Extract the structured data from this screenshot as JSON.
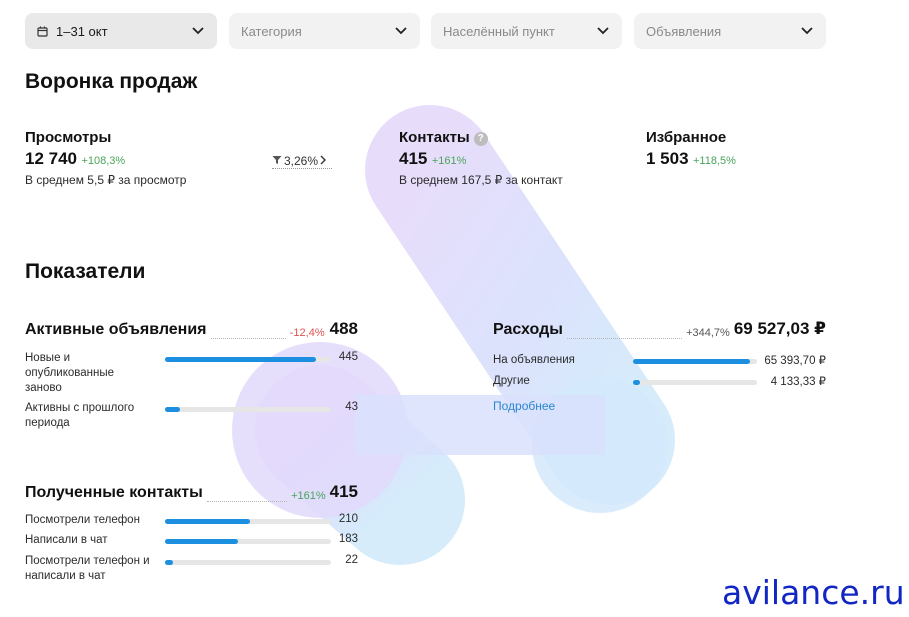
{
  "filters": {
    "period": "1–31 окт",
    "category": "Категория",
    "location": "Населённый пункт",
    "ads": "Объявления"
  },
  "funnel": {
    "title": "Воронка продаж",
    "views": {
      "title": "Просмотры",
      "value": "12 740",
      "delta": "+108,3%",
      "sub": "В среднем 5,5 ₽ за просмотр"
    },
    "conversion": "3,26%",
    "contacts": {
      "title": "Контакты",
      "value": "415",
      "delta": "+161%",
      "sub": "В среднем 167,5 ₽ за контакт"
    },
    "favorites": {
      "title": "Избранное",
      "value": "1 503",
      "delta": "+118,5%"
    }
  },
  "indicators": {
    "title": "Показатели",
    "active_ads": {
      "title": "Активные объявления",
      "delta": "-12,4%",
      "value": "488",
      "rows": [
        {
          "label": "Новые и опубликованные заново",
          "value": "445",
          "fraction": 0.91
        },
        {
          "label": "Активны с прошлого периода",
          "value": "43",
          "fraction": 0.09
        }
      ]
    },
    "expenses": {
      "title": "Расходы",
      "delta": "+344,7%",
      "value": "69 527,03 ₽",
      "rows": [
        {
          "label": "На объявления",
          "value": "65 393,70 ₽",
          "fraction": 0.94
        },
        {
          "label": "Другие",
          "value": "4 133,33 ₽",
          "fraction": 0.06
        }
      ],
      "more_link": "Подробнее"
    },
    "received_contacts": {
      "title": "Полученные контакты",
      "delta": "+161%",
      "value": "415",
      "rows": [
        {
          "label": "Посмотрели телефон",
          "value": "210",
          "fraction": 0.51
        },
        {
          "label": "Написали в чат",
          "value": "183",
          "fraction": 0.44
        },
        {
          "label": "Посмотрели телефон и написали в чат",
          "value": "22",
          "fraction": 0.05
        }
      ]
    }
  },
  "watermark": "avilance.ru",
  "colors": {
    "accent": "#1d8fe0",
    "positive": "#4aa45a",
    "negative": "#e05050",
    "link": "#2a86d1"
  }
}
